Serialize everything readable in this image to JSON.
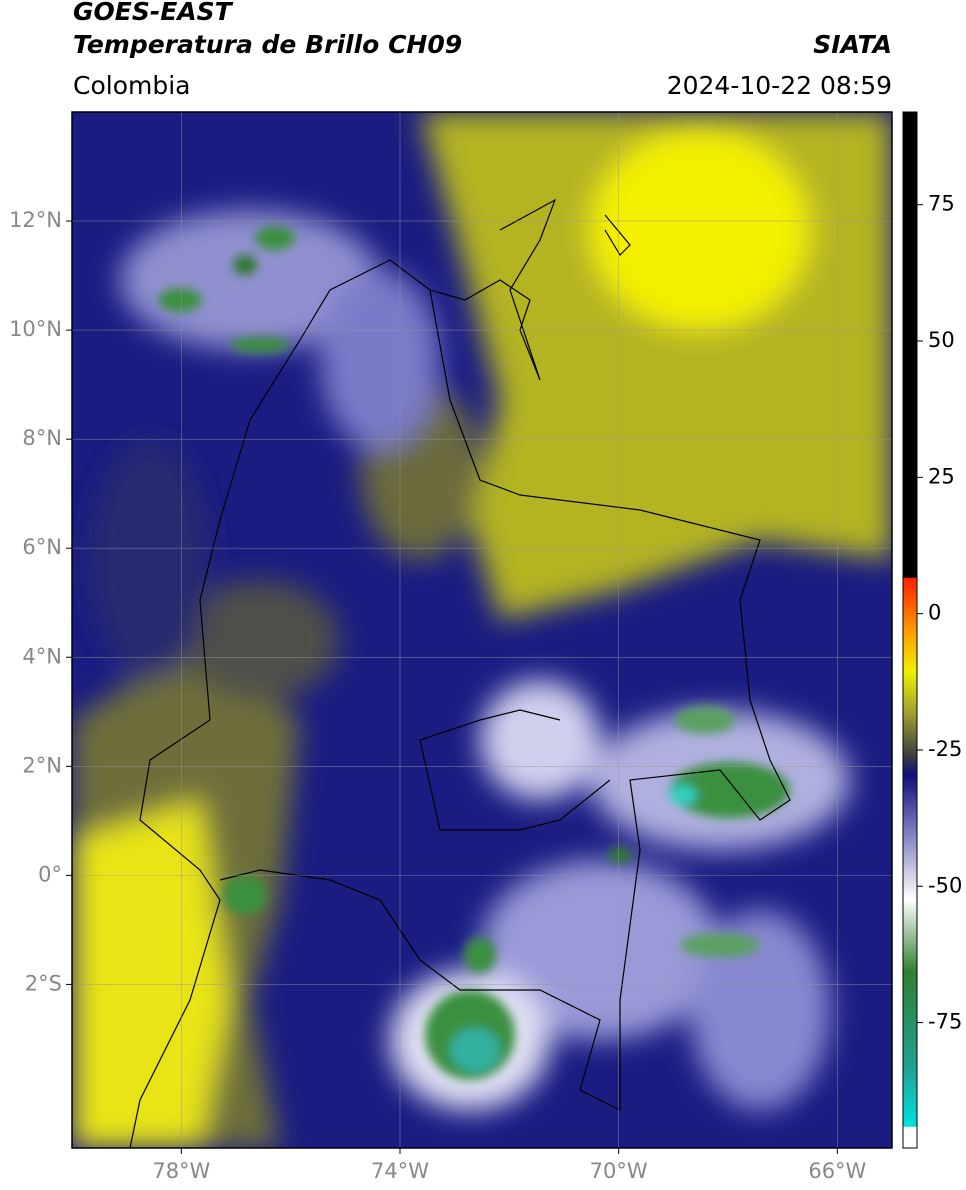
{
  "header": {
    "title_line1": "GOES-EAST",
    "title_line2": "Temperatura de Brillo CH09",
    "source": "SIATA",
    "region": "Colombia",
    "timestamp": "2024-10-22 08:59"
  },
  "map": {
    "xlim": [
      -80,
      -65
    ],
    "ylim": [
      -5,
      14
    ],
    "xticks": [
      {
        "value": -78,
        "label": "78°W"
      },
      {
        "value": -74,
        "label": "74°W"
      },
      {
        "value": -70,
        "label": "70°W"
      },
      {
        "value": -66,
        "label": "66°W"
      }
    ],
    "yticks": [
      {
        "value": 12,
        "label": "12°N"
      },
      {
        "value": 10,
        "label": "10°N"
      },
      {
        "value": 8,
        "label": "8°N"
      },
      {
        "value": 6,
        "label": "6°N"
      },
      {
        "value": 4,
        "label": "4°N"
      },
      {
        "value": 2,
        "label": "2°N"
      },
      {
        "value": 0,
        "label": "0°"
      },
      {
        "value": -2,
        "label": "2°S"
      }
    ],
    "grid": true
  },
  "colorbar": {
    "lim": [
      -98,
      92
    ],
    "ticks": [
      75,
      50,
      25,
      0,
      -25,
      -50,
      -75
    ]
  }
}
